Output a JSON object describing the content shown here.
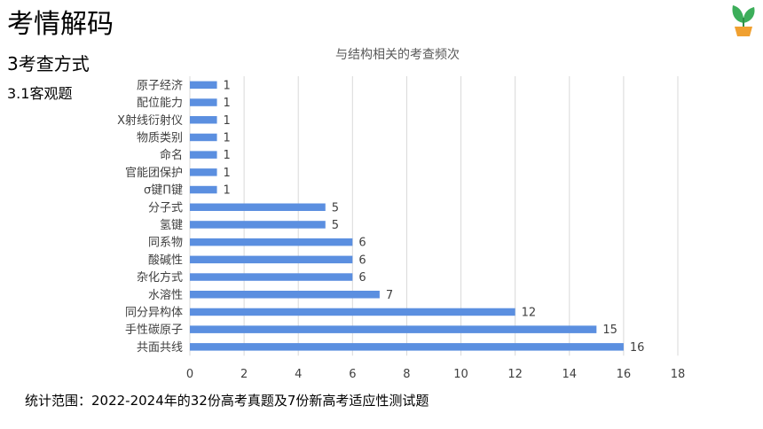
{
  "header": {
    "title": "考情解码",
    "section": "3考查方式",
    "subsection": "3.1客观题"
  },
  "footnote": "统计范围：2022-2024年的32份高考真题及7份新高考适应性测试题",
  "colors": {
    "bar": "#5b8fe0",
    "grid": "#d9d9d9",
    "text": "#404040",
    "logo_leaf": "#3cae5a",
    "logo_pot": "#f0a030"
  },
  "chart_data": {
    "type": "bar",
    "orientation": "horizontal",
    "title": "与结构相关的考查频次",
    "categories": [
      "原子经济",
      "配位能力",
      "X射线衍射仪",
      "物质类别",
      "命名",
      "官能团保护",
      "σ键Π键",
      "分子式",
      "氢键",
      "同系物",
      "酸碱性",
      "杂化方式",
      "水溶性",
      "同分异构体",
      "手性碳原子",
      "共面共线"
    ],
    "values": [
      1,
      1,
      1,
      1,
      1,
      1,
      1,
      5,
      5,
      6,
      6,
      6,
      7,
      12,
      15,
      16
    ],
    "xlim": [
      0,
      18
    ],
    "xticks": [
      0,
      2,
      4,
      6,
      8,
      10,
      12,
      14,
      16,
      18
    ],
    "grid": true,
    "data_labels": true,
    "legend": "none"
  }
}
